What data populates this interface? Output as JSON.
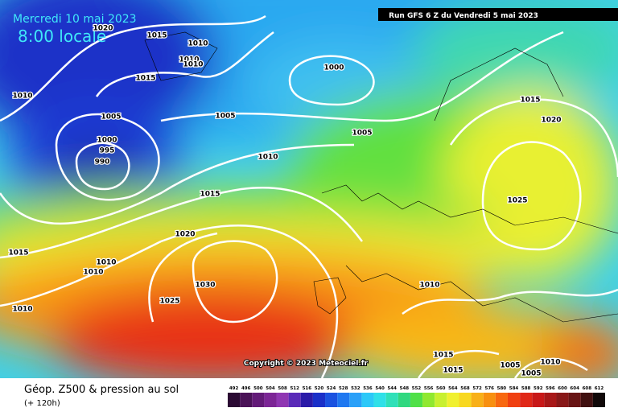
{
  "header": {
    "date": "Mercredi 10 mai 2023",
    "time": "8:00 locale",
    "run": "Run GFS 6 Z du Vendredi 5 mai 2023"
  },
  "copyright": "Copyright © 2023 Meteociel.fr",
  "footer": {
    "title": "Géop. Z500 & pression au sol",
    "subtitle": "(+ 120h)"
  },
  "isobars": [
    "1015",
    "1020",
    "1010",
    "1010",
    "1010",
    "1015",
    "1000",
    "1010",
    "1005",
    "1005",
    "1005",
    "1000",
    "995",
    "990",
    "1015",
    "1020",
    "1010",
    "1015",
    "1025",
    "1020",
    "1015",
    "1010",
    "1010",
    "1030",
    "1010",
    "1025",
    "1010",
    "1015",
    "1015",
    "1005",
    "1010",
    "1005"
  ],
  "legend": {
    "labels": [
      492,
      496,
      500,
      504,
      508,
      512,
      516,
      520,
      524,
      528,
      532,
      536,
      540,
      544,
      548,
      552,
      556,
      560,
      564,
      568,
      572,
      576,
      580,
      584,
      588,
      592,
      596,
      600,
      604,
      608,
      612
    ],
    "colors": [
      "#2b0a33",
      "#4a1257",
      "#631a78",
      "#7c2596",
      "#8f36b2",
      "#5a2ab8",
      "#2a1aa8",
      "#1a2fc8",
      "#1a52e0",
      "#1f78f0",
      "#2aa0f8",
      "#2cc8f8",
      "#30e0e8",
      "#30e0b8",
      "#30d880",
      "#50e048",
      "#90e830",
      "#c8f030",
      "#f0f030",
      "#f8d820",
      "#f8b018",
      "#f89010",
      "#f86810",
      "#f04010",
      "#e02818",
      "#c81818",
      "#a81818",
      "#881818",
      "#681414",
      "#401010",
      "#100808"
    ]
  }
}
